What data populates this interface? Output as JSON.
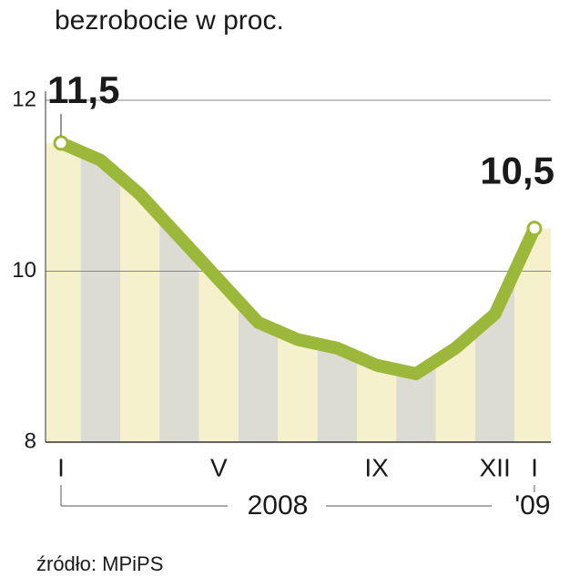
{
  "chart_data": {
    "type": "line",
    "title": "bezrobocie w proc.",
    "categories": [
      "I",
      null,
      null,
      null,
      "V",
      null,
      null,
      null,
      "IX",
      null,
      null,
      "XII",
      "I"
    ],
    "year_labels": [
      "2008",
      "'09"
    ],
    "series": [
      {
        "name": "bezrobocie",
        "color": "#9cb83a",
        "values": [
          11.5,
          11.3,
          10.9,
          10.4,
          9.9,
          9.4,
          9.2,
          9.1,
          8.9,
          8.8,
          9.1,
          9.5,
          10.5
        ],
        "value_labels": [
          "11,5",
          null,
          null,
          null,
          null,
          null,
          null,
          null,
          null,
          null,
          null,
          null,
          "10,5"
        ]
      }
    ],
    "ylim": [
      8,
      12
    ],
    "yticks": [
      8,
      10,
      12
    ],
    "grid": true,
    "source": "źródło: MPiPS"
  }
}
